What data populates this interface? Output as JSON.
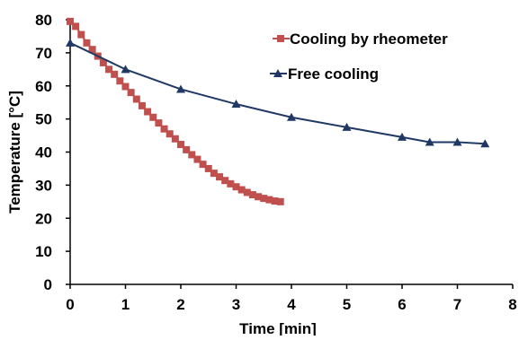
{
  "chart_data": {
    "type": "line",
    "xlabel": "Time [min]",
    "ylabel": "Temperature [°C]",
    "xlim": [
      0,
      8
    ],
    "ylim": [
      0,
      80
    ],
    "xticks": [
      0,
      1,
      2,
      3,
      4,
      5,
      6,
      7,
      8
    ],
    "yticks": [
      0,
      10,
      20,
      30,
      40,
      50,
      60,
      70,
      80
    ],
    "grid": false,
    "legend_position": "top-right",
    "series": [
      {
        "name": "Cooling by rheometer",
        "color": "#c0504d",
        "marker": "square",
        "x": [
          0.0,
          0.1,
          0.2,
          0.3,
          0.4,
          0.5,
          0.6,
          0.7,
          0.8,
          0.9,
          1.0,
          1.1,
          1.2,
          1.3,
          1.4,
          1.5,
          1.6,
          1.7,
          1.8,
          1.9,
          2.0,
          2.1,
          2.2,
          2.3,
          2.4,
          2.5,
          2.6,
          2.7,
          2.8,
          2.9,
          3.0,
          3.1,
          3.2,
          3.3,
          3.4,
          3.5,
          3.6,
          3.7,
          3.8
        ],
        "y": [
          79.5,
          78.0,
          75.5,
          73.0,
          71.0,
          69.0,
          67.0,
          65.0,
          63.5,
          61.5,
          59.8,
          58.0,
          56.0,
          54.0,
          52.2,
          50.5,
          48.8,
          47.0,
          45.5,
          44.0,
          42.3,
          40.7,
          39.2,
          37.8,
          36.3,
          35.0,
          33.6,
          32.5,
          31.4,
          30.4,
          29.5,
          28.6,
          27.8,
          27.1,
          26.5,
          26.0,
          25.6,
          25.2,
          25.0
        ]
      },
      {
        "name": "Free cooling",
        "color": "#1f3864",
        "marker": "triangle",
        "x": [
          0,
          1,
          2,
          3,
          4,
          5,
          6,
          6.5,
          7,
          7.5
        ],
        "y": [
          73.0,
          65.0,
          59.0,
          54.5,
          50.5,
          47.5,
          44.5,
          43.0,
          43.0,
          42.5
        ]
      }
    ]
  }
}
